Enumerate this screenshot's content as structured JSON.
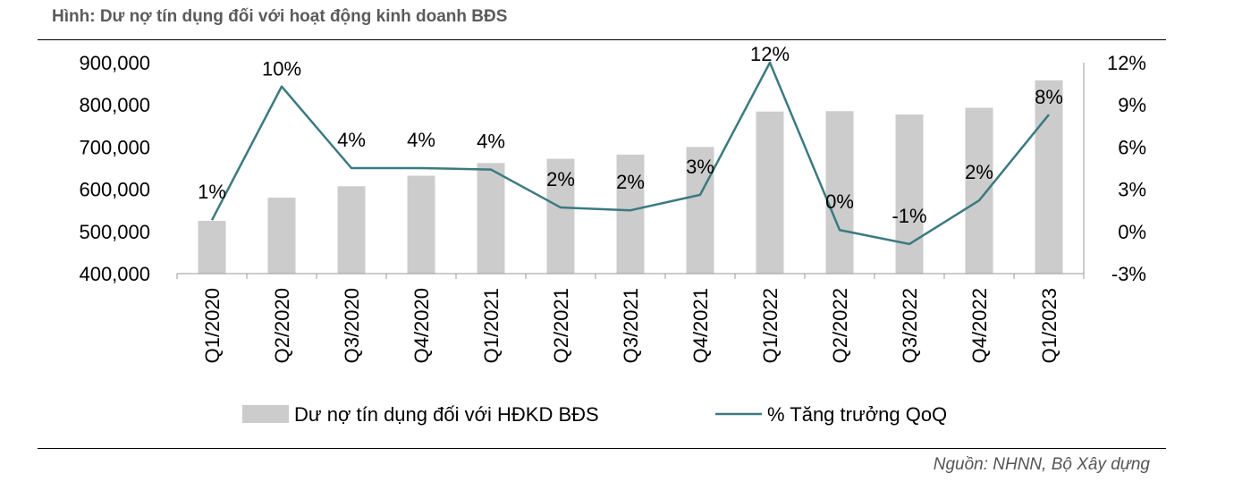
{
  "title": "Hình: Dư nợ tín dụng đối với hoạt động kinh doanh BĐS",
  "source": "Nguồn: NHNN, Bộ Xây dựng",
  "colors": {
    "bar": "#cccccc",
    "line": "#3b7a80",
    "axis": "#999999"
  },
  "chart_data": {
    "type": "bar",
    "categories": [
      "Q1/2020",
      "Q2/2020",
      "Q3/2020",
      "Q4/2020",
      "Q1/2021",
      "Q2/2021",
      "Q3/2021",
      "Q4/2021",
      "Q1/2022",
      "Q2/2022",
      "Q3/2022",
      "Q4/2022",
      "Q1/2023"
    ],
    "series": [
      {
        "name": "Dư nợ tín dụng đối với HĐKD BĐS",
        "type": "bar",
        "axis": "left",
        "values": [
          525000,
          580000,
          607000,
          632000,
          662000,
          672000,
          682000,
          700000,
          784000,
          785000,
          777000,
          793000,
          858000
        ]
      },
      {
        "name": "% Tăng trưởng QoQ",
        "type": "line",
        "axis": "right",
        "values": [
          0.8,
          10.3,
          4.5,
          4.5,
          4.4,
          1.7,
          1.5,
          2.6,
          12.0,
          0.1,
          -0.9,
          2.2,
          8.3
        ],
        "data_labels": [
          "1%",
          "10%",
          "4%",
          "4%",
          "4%",
          "2%",
          "2%",
          "3%",
          "12%",
          "0%",
          "-1%",
          "2%",
          "8%"
        ]
      }
    ],
    "y_left": {
      "ylim": [
        400000,
        900000
      ],
      "ticks": [
        "400,000",
        "500,000",
        "600,000",
        "700,000",
        "800,000",
        "900,000"
      ]
    },
    "y_right": {
      "ylim": [
        -3,
        12
      ],
      "ticks": [
        "-3%",
        "0%",
        "3%",
        "6%",
        "9%",
        "12%"
      ]
    },
    "legend_position": "bottom",
    "grid": false
  }
}
